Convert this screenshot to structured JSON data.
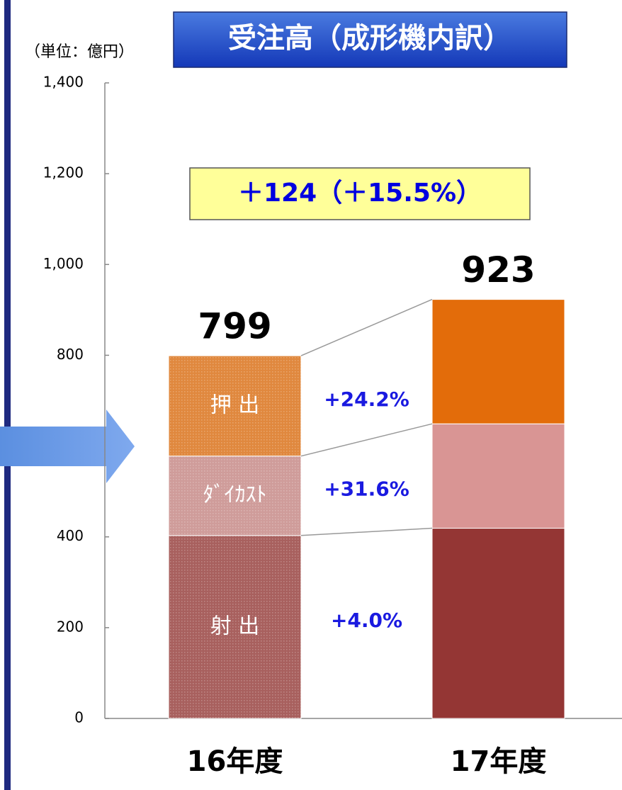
{
  "chart_data": {
    "type": "stacked_bar",
    "title": "受注高（成形機内訳）",
    "unit_label": "（単位：億円）",
    "annotation": "＋124（＋15.5%）",
    "categories": [
      "16年度",
      "17年度"
    ],
    "series": [
      {
        "name": "射 出",
        "colors": [
          "#a8605e",
          "#943634"
        ],
        "values": [
          403,
          419
        ],
        "change": "+4.0%"
      },
      {
        "name": "ﾀﾞｲｶｽﾄ",
        "colors": [
          "#cf9c9a",
          "#d99594"
        ],
        "values": [
          175,
          230
        ],
        "change": "+31.6%"
      },
      {
        "name": "押 出",
        "colors": [
          "#e0883e",
          "#e36c0a"
        ],
        "values": [
          221,
          274
        ],
        "change": "+24.2%"
      }
    ],
    "totals": [
      799,
      923
    ],
    "ylim": [
      0,
      1400
    ],
    "yticks": [
      0,
      200,
      400,
      800,
      {
        "value": 1000,
        "label": "1,000"
      },
      {
        "value": 1200,
        "label": "1,200"
      },
      {
        "value": 1400,
        "label": "1,400"
      }
    ],
    "grid": false
  }
}
